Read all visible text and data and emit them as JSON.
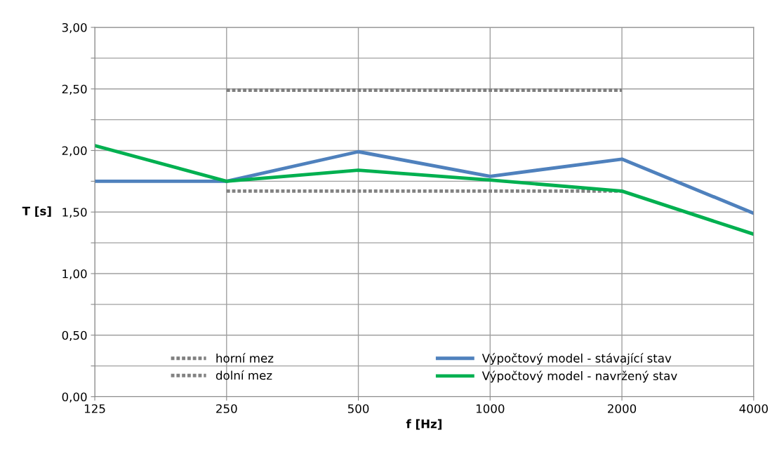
{
  "chart_data": {
    "type": "line",
    "xlabel": "f [Hz]",
    "ylabel": "T [s]",
    "categories": [
      "125",
      "250",
      "500",
      "1000",
      "2000",
      "4000"
    ],
    "series": [
      {
        "name": "horní mez",
        "color": "#7f7f7f",
        "line_style": "dotted",
        "values": [
          null,
          2.49,
          2.49,
          2.49,
          2.49,
          null
        ]
      },
      {
        "name": "dolní mez",
        "color": "#828282",
        "line_style": "dotted",
        "values": [
          null,
          1.67,
          1.67,
          1.67,
          1.67,
          null
        ]
      },
      {
        "name": "Výpočtový model - stávající stav",
        "color": "#4f81bd",
        "line_style": "solid",
        "values": [
          1.75,
          1.75,
          1.99,
          1.79,
          1.93,
          1.49
        ]
      },
      {
        "name": "Výpočtový model - navržený stav",
        "color": "#00b050",
        "line_style": "solid",
        "values": [
          2.04,
          1.75,
          1.84,
          1.76,
          1.67,
          1.32
        ]
      }
    ],
    "ylim": [
      0,
      3
    ],
    "yticks": [
      {
        "value": 0,
        "label": "0,00"
      },
      {
        "value": 0.25,
        "label": null
      },
      {
        "value": 0.5,
        "label": "0,50"
      },
      {
        "value": 0.75,
        "label": null
      },
      {
        "value": 1,
        "label": "1,00"
      },
      {
        "value": 1.25,
        "label": null
      },
      {
        "value": 1.5,
        "label": "1,50"
      },
      {
        "value": 1.75,
        "label": null
      },
      {
        "value": 2,
        "label": "2,00"
      },
      {
        "value": 2.25,
        "label": null
      },
      {
        "value": 2.5,
        "label": "2,50"
      },
      {
        "value": 2.75,
        "label": null
      },
      {
        "value": 3,
        "label": "3,00"
      }
    ],
    "grid": true,
    "legend": "bottom",
    "marker": "none"
  }
}
